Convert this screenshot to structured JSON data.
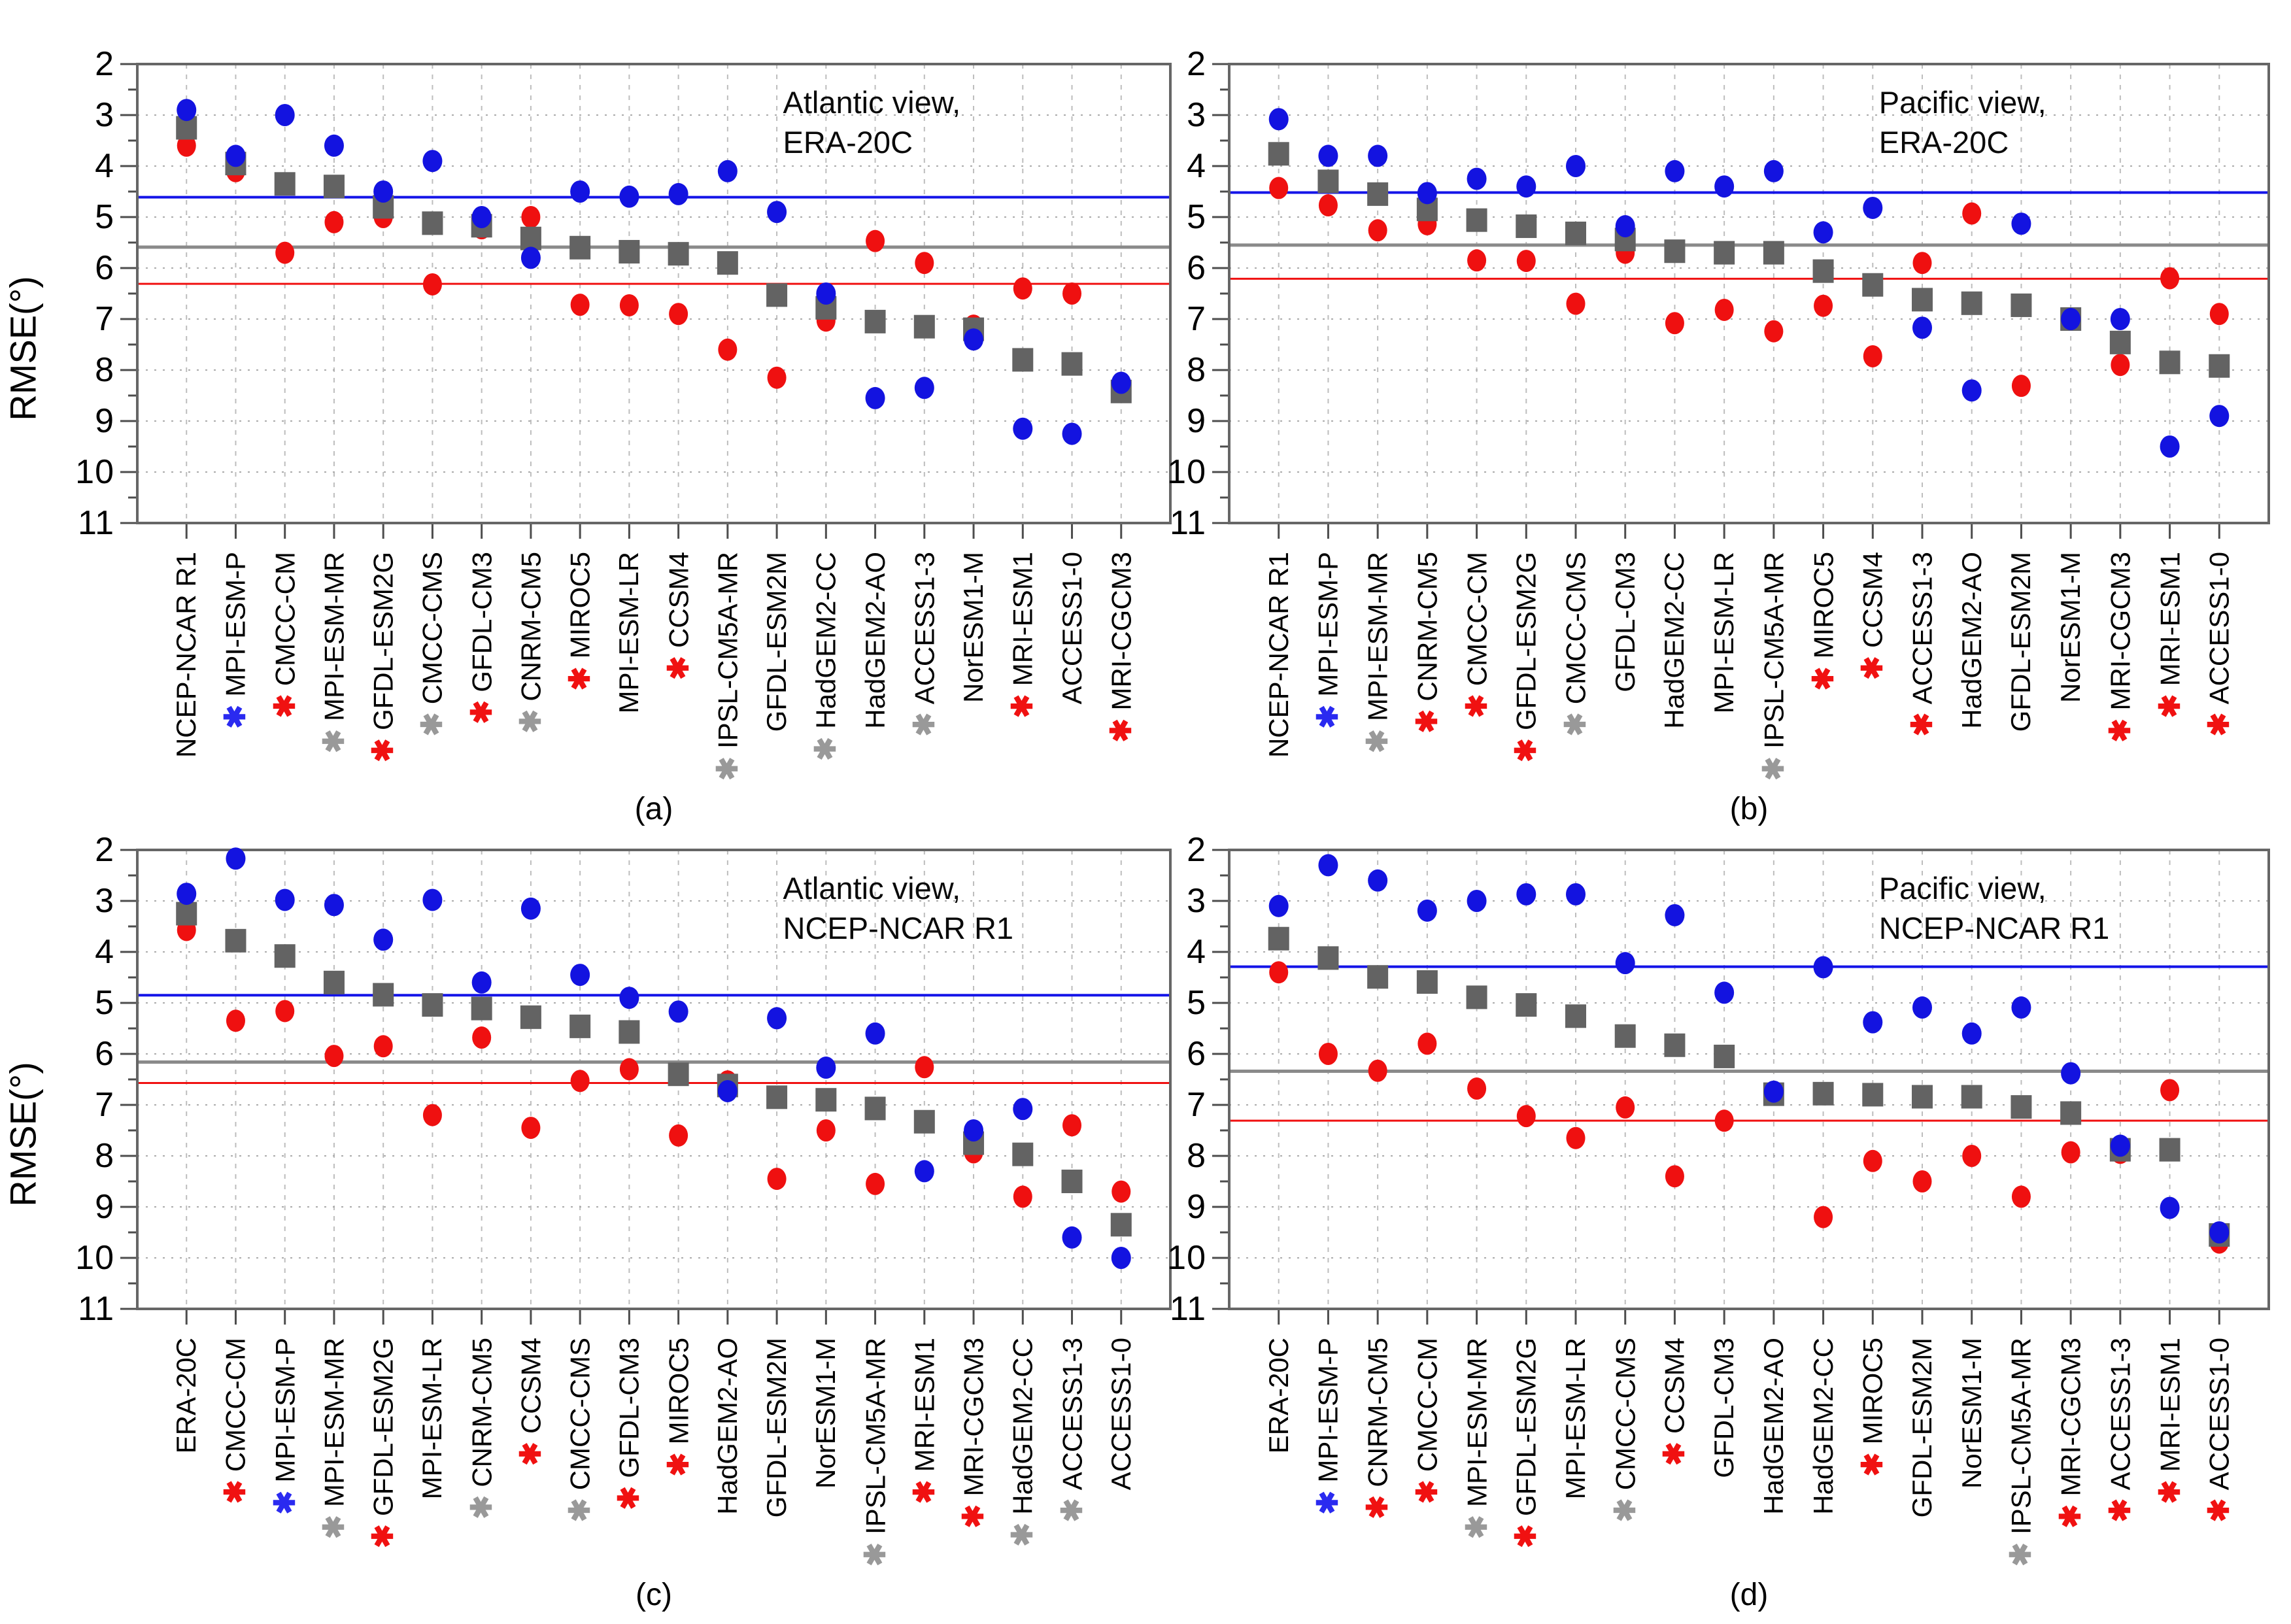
{
  "figure": {
    "background": "#ffffff",
    "ylabel": "RMSE(°)"
  },
  "colors": {
    "blue_marker": "#1313e0",
    "red_marker": "#ef1010",
    "gray_marker": "#636363",
    "blue_line": "#1414e8",
    "gray_line": "#8a8a8a",
    "red_line": "#f01111",
    "ast_red": "#f01111",
    "ast_blue": "#2a2af0",
    "ast_gray": "#999999",
    "axis": "#4d4d4d",
    "grid_v": "#bdbdbd",
    "grid_h": "#ababab"
  },
  "chart_data": [
    {
      "id": "a",
      "type": "scatter",
      "letter": "(a)",
      "title": [
        "Atlantic view,",
        "ERA-20C"
      ],
      "ylabel": "RMSE(°)",
      "ylim": [
        2,
        11
      ],
      "yticks": [
        2,
        3,
        4,
        5,
        6,
        7,
        8,
        9,
        10,
        11
      ],
      "grid": true,
      "legend_position": "none",
      "ref_lines": {
        "blue": 4.61,
        "gray": 5.59,
        "red": 6.31
      },
      "models": [
        {
          "name": "NCEP-NCAR R1",
          "ast": "none",
          "blue": 2.9,
          "gray": 3.25,
          "red": 3.6
        },
        {
          "name": "MPI-ESM-P",
          "ast": "blue",
          "blue": 3.8,
          "gray": 3.95,
          "red": 4.1
        },
        {
          "name": "CMCC-CM",
          "ast": "red",
          "blue": 3.0,
          "gray": 4.35,
          "red": 5.7
        },
        {
          "name": "MPI-ESM-MR",
          "ast": "gray",
          "blue": 3.6,
          "gray": 4.4,
          "red": 5.1
        },
        {
          "name": "GFDL-ESM2G",
          "ast": "red",
          "blue": 4.5,
          "gray": 4.8,
          "red": 5.0
        },
        {
          "name": "CMCC-CMS",
          "ast": "gray",
          "blue": 3.9,
          "gray": 5.12,
          "red": 6.32
        },
        {
          "name": "GFDL-CM3",
          "ast": "red",
          "blue": 5.0,
          "gray": 5.17,
          "red": 5.22
        },
        {
          "name": "CNRM-CM5",
          "ast": "gray",
          "blue": 5.8,
          "gray": 5.42,
          "red": 5.0
        },
        {
          "name": "MIROC5",
          "ast": "red",
          "blue": 4.5,
          "gray": 5.6,
          "red": 6.72
        },
        {
          "name": "MPI-ESM-LR",
          "ast": "none",
          "blue": 4.6,
          "gray": 5.68,
          "red": 6.73
        },
        {
          "name": "CCSM4",
          "ast": "red",
          "blue": 4.55,
          "gray": 5.72,
          "red": 6.9
        },
        {
          "name": "IPSL-CM5A-MR",
          "ast": "gray",
          "blue": 4.1,
          "gray": 5.9,
          "red": 7.6
        },
        {
          "name": "GFDL-ESM2M",
          "ast": "none",
          "blue": 4.9,
          "gray": 6.53,
          "red": 8.15
        },
        {
          "name": "HadGEM2-CC",
          "ast": "gray",
          "blue": 6.5,
          "gray": 6.78,
          "red": 7.03
        },
        {
          "name": "HadGEM2-AO",
          "ast": "none",
          "blue": 8.55,
          "gray": 7.05,
          "red": 5.47
        },
        {
          "name": "ACCESS1-3",
          "ast": "gray",
          "blue": 8.35,
          "gray": 7.15,
          "red": 5.9
        },
        {
          "name": "NorESM1-M",
          "ast": "none",
          "blue": 7.4,
          "gray": 7.2,
          "red": 7.13
        },
        {
          "name": "MRI-ESM1",
          "ast": "red",
          "blue": 9.15,
          "gray": 7.8,
          "red": 6.4
        },
        {
          "name": "ACCESS1-0",
          "ast": "none",
          "blue": 9.25,
          "gray": 7.88,
          "red": 6.5
        },
        {
          "name": "MRI-CGCM3",
          "ast": "red",
          "blue": 8.25,
          "gray": 8.42,
          "red": 8.37
        }
      ]
    },
    {
      "id": "b",
      "type": "scatter",
      "letter": "(b)",
      "title": [
        "Pacific view,",
        "ERA-20C"
      ],
      "ylabel": "",
      "ylim": [
        2,
        11
      ],
      "yticks": [
        2,
        3,
        4,
        5,
        6,
        7,
        8,
        9,
        10,
        11
      ],
      "grid": true,
      "legend_position": "none",
      "ref_lines": {
        "blue": 4.52,
        "gray": 5.55,
        "red": 6.21
      },
      "models": [
        {
          "name": "NCEP-NCAR R1",
          "ast": "none",
          "blue": 3.08,
          "gray": 3.76,
          "red": 4.43
        },
        {
          "name": "MPI-ESM-P",
          "ast": "blue",
          "blue": 3.8,
          "gray": 4.3,
          "red": 4.77
        },
        {
          "name": "MPI-ESM-MR",
          "ast": "gray",
          "blue": 3.8,
          "gray": 4.55,
          "red": 5.26
        },
        {
          "name": "CNRM-CM5",
          "ast": "red",
          "blue": 4.53,
          "gray": 4.85,
          "red": 5.14
        },
        {
          "name": "CMCC-CM",
          "ast": "red",
          "blue": 4.25,
          "gray": 5.06,
          "red": 5.85
        },
        {
          "name": "GFDL-ESM2G",
          "ast": "red",
          "blue": 4.4,
          "gray": 5.18,
          "red": 5.86
        },
        {
          "name": "CMCC-CMS",
          "ast": "gray",
          "blue": 4.0,
          "gray": 5.32,
          "red": 6.7
        },
        {
          "name": "GFDL-CM3",
          "ast": "none",
          "blue": 5.18,
          "gray": 5.44,
          "red": 5.7
        },
        {
          "name": "HadGEM2-CC",
          "ast": "none",
          "blue": 4.1,
          "gray": 5.67,
          "red": 7.08
        },
        {
          "name": "MPI-ESM-LR",
          "ast": "none",
          "blue": 4.4,
          "gray": 5.7,
          "red": 6.82
        },
        {
          "name": "IPSL-CM5A-MR",
          "ast": "gray",
          "blue": 4.1,
          "gray": 5.7,
          "red": 7.24
        },
        {
          "name": "MIROC5",
          "ast": "red",
          "blue": 5.3,
          "gray": 6.06,
          "red": 6.74
        },
        {
          "name": "CCSM4",
          "ast": "red",
          "blue": 4.82,
          "gray": 6.33,
          "red": 7.73
        },
        {
          "name": "ACCESS1-3",
          "ast": "red",
          "blue": 7.17,
          "gray": 6.62,
          "red": 5.9
        },
        {
          "name": "HadGEM2-AO",
          "ast": "none",
          "blue": 8.4,
          "gray": 6.69,
          "red": 4.93
        },
        {
          "name": "GFDL-ESM2M",
          "ast": "none",
          "blue": 5.13,
          "gray": 6.73,
          "red": 8.31
        },
        {
          "name": "NorESM1-M",
          "ast": "none",
          "blue": 7.0,
          "gray": 7.0,
          "red": 7.0
        },
        {
          "name": "MRI-CGCM3",
          "ast": "red",
          "blue": 7.0,
          "gray": 7.46,
          "red": 7.9
        },
        {
          "name": "MRI-ESM1",
          "ast": "red",
          "blue": 9.5,
          "gray": 7.85,
          "red": 6.2
        },
        {
          "name": "ACCESS1-0",
          "ast": "red",
          "blue": 8.9,
          "gray": 7.92,
          "red": 6.9
        }
      ]
    },
    {
      "id": "c",
      "type": "scatter",
      "letter": "(c)",
      "title": [
        "Atlantic view,",
        "NCEP-NCAR R1"
      ],
      "ylabel": "RMSE(°)",
      "ylim": [
        2,
        11
      ],
      "yticks": [
        2,
        3,
        4,
        5,
        6,
        7,
        8,
        9,
        10,
        11
      ],
      "grid": true,
      "legend_position": "none",
      "ref_lines": {
        "blue": 4.85,
        "gray": 6.16,
        "red": 6.57
      },
      "models": [
        {
          "name": "ERA-20C",
          "ast": "none",
          "blue": 2.86,
          "gray": 3.25,
          "red": 3.57
        },
        {
          "name": "CMCC-CM",
          "ast": "red",
          "blue": 2.17,
          "gray": 3.78,
          "red": 5.35
        },
        {
          "name": "MPI-ESM-P",
          "ast": "blue",
          "blue": 2.98,
          "gray": 4.08,
          "red": 5.16
        },
        {
          "name": "MPI-ESM-MR",
          "ast": "gray",
          "blue": 3.08,
          "gray": 4.6,
          "red": 6.04
        },
        {
          "name": "GFDL-ESM2G",
          "ast": "red",
          "blue": 3.76,
          "gray": 4.84,
          "red": 5.85
        },
        {
          "name": "MPI-ESM-LR",
          "ast": "none",
          "blue": 2.98,
          "gray": 5.04,
          "red": 7.2
        },
        {
          "name": "CNRM-CM5",
          "ast": "gray",
          "blue": 4.6,
          "gray": 5.11,
          "red": 5.68
        },
        {
          "name": "CCSM4",
          "ast": "red",
          "blue": 3.15,
          "gray": 5.28,
          "red": 7.45
        },
        {
          "name": "CMCC-CMS",
          "ast": "gray",
          "blue": 4.45,
          "gray": 5.46,
          "red": 6.53
        },
        {
          "name": "GFDL-CM3",
          "ast": "red",
          "blue": 4.9,
          "gray": 5.57,
          "red": 6.3
        },
        {
          "name": "MIROC5",
          "ast": "red",
          "blue": 5.17,
          "gray": 6.4,
          "red": 7.6
        },
        {
          "name": "HadGEM2-AO",
          "ast": "none",
          "blue": 6.73,
          "gray": 6.62,
          "red": 6.54
        },
        {
          "name": "GFDL-ESM2M",
          "ast": "none",
          "blue": 5.3,
          "gray": 6.85,
          "red": 8.45
        },
        {
          "name": "NorESM1-M",
          "ast": "none",
          "blue": 6.27,
          "gray": 6.9,
          "red": 7.5
        },
        {
          "name": "IPSL-CM5A-MR",
          "ast": "gray",
          "blue": 5.6,
          "gray": 7.07,
          "red": 8.55
        },
        {
          "name": "MRI-ESM1",
          "ast": "red",
          "blue": 8.3,
          "gray": 7.33,
          "red": 6.26
        },
        {
          "name": "MRI-CGCM3",
          "ast": "red",
          "blue": 7.5,
          "gray": 7.75,
          "red": 7.93
        },
        {
          "name": "HadGEM2-CC",
          "ast": "gray",
          "blue": 7.08,
          "gray": 7.97,
          "red": 8.8
        },
        {
          "name": "ACCESS1-3",
          "ast": "gray",
          "blue": 9.6,
          "gray": 8.5,
          "red": 7.4
        },
        {
          "name": "ACCESS1-0",
          "ast": "none",
          "blue": 10.0,
          "gray": 9.35,
          "red": 8.7
        }
      ]
    },
    {
      "id": "d",
      "type": "scatter",
      "letter": "(d)",
      "title": [
        "Pacific view,",
        "NCEP-NCAR R1"
      ],
      "ylabel": "",
      "ylim": [
        2,
        11
      ],
      "yticks": [
        2,
        3,
        4,
        5,
        6,
        7,
        8,
        9,
        10,
        11
      ],
      "grid": true,
      "legend_position": "none",
      "ref_lines": {
        "blue": 4.29,
        "gray": 6.34,
        "red": 7.31
      },
      "models": [
        {
          "name": "ERA-20C",
          "ast": "none",
          "blue": 3.1,
          "gray": 3.74,
          "red": 4.4
        },
        {
          "name": "MPI-ESM-P",
          "ast": "blue",
          "blue": 2.3,
          "gray": 4.12,
          "red": 6.0
        },
        {
          "name": "CNRM-CM5",
          "ast": "red",
          "blue": 2.6,
          "gray": 4.49,
          "red": 6.33
        },
        {
          "name": "CMCC-CM",
          "ast": "red",
          "blue": 3.19,
          "gray": 4.59,
          "red": 5.8
        },
        {
          "name": "MPI-ESM-MR",
          "ast": "gray",
          "blue": 3.0,
          "gray": 4.89,
          "red": 6.68
        },
        {
          "name": "GFDL-ESM2G",
          "ast": "red",
          "blue": 2.87,
          "gray": 5.04,
          "red": 7.22
        },
        {
          "name": "MPI-ESM-LR",
          "ast": "none",
          "blue": 2.87,
          "gray": 5.26,
          "red": 7.65
        },
        {
          "name": "CMCC-CMS",
          "ast": "gray",
          "blue": 4.22,
          "gray": 5.65,
          "red": 7.05
        },
        {
          "name": "CCSM4",
          "ast": "red",
          "blue": 3.28,
          "gray": 5.83,
          "red": 8.4
        },
        {
          "name": "GFDL-CM3",
          "ast": "none",
          "blue": 4.8,
          "gray": 6.05,
          "red": 7.31
        },
        {
          "name": "HadGEM2-AO",
          "ast": "none",
          "blue": 6.74,
          "gray": 6.79,
          "red": 6.79
        },
        {
          "name": "HadGEM2-CC",
          "ast": "none",
          "blue": 4.3,
          "gray": 6.78,
          "red": 9.2
        },
        {
          "name": "MIROC5",
          "ast": "red",
          "blue": 5.38,
          "gray": 6.8,
          "red": 8.1
        },
        {
          "name": "GFDL-ESM2M",
          "ast": "none",
          "blue": 5.09,
          "gray": 6.84,
          "red": 8.5
        },
        {
          "name": "NorESM1-M",
          "ast": "none",
          "blue": 5.6,
          "gray": 6.84,
          "red": 8.0
        },
        {
          "name": "IPSL-CM5A-MR",
          "ast": "gray",
          "blue": 5.09,
          "gray": 7.04,
          "red": 8.8
        },
        {
          "name": "MRI-CGCM3",
          "ast": "red",
          "blue": 6.38,
          "gray": 7.16,
          "red": 7.93
        },
        {
          "name": "ACCESS1-3",
          "ast": "red",
          "blue": 7.8,
          "gray": 7.88,
          "red": 7.94
        },
        {
          "name": "MRI-ESM1",
          "ast": "red",
          "blue": 9.02,
          "gray": 7.88,
          "red": 6.71
        },
        {
          "name": "ACCESS1-0",
          "ast": "red",
          "blue": 9.5,
          "gray": 9.55,
          "red": 9.7
        }
      ]
    }
  ]
}
